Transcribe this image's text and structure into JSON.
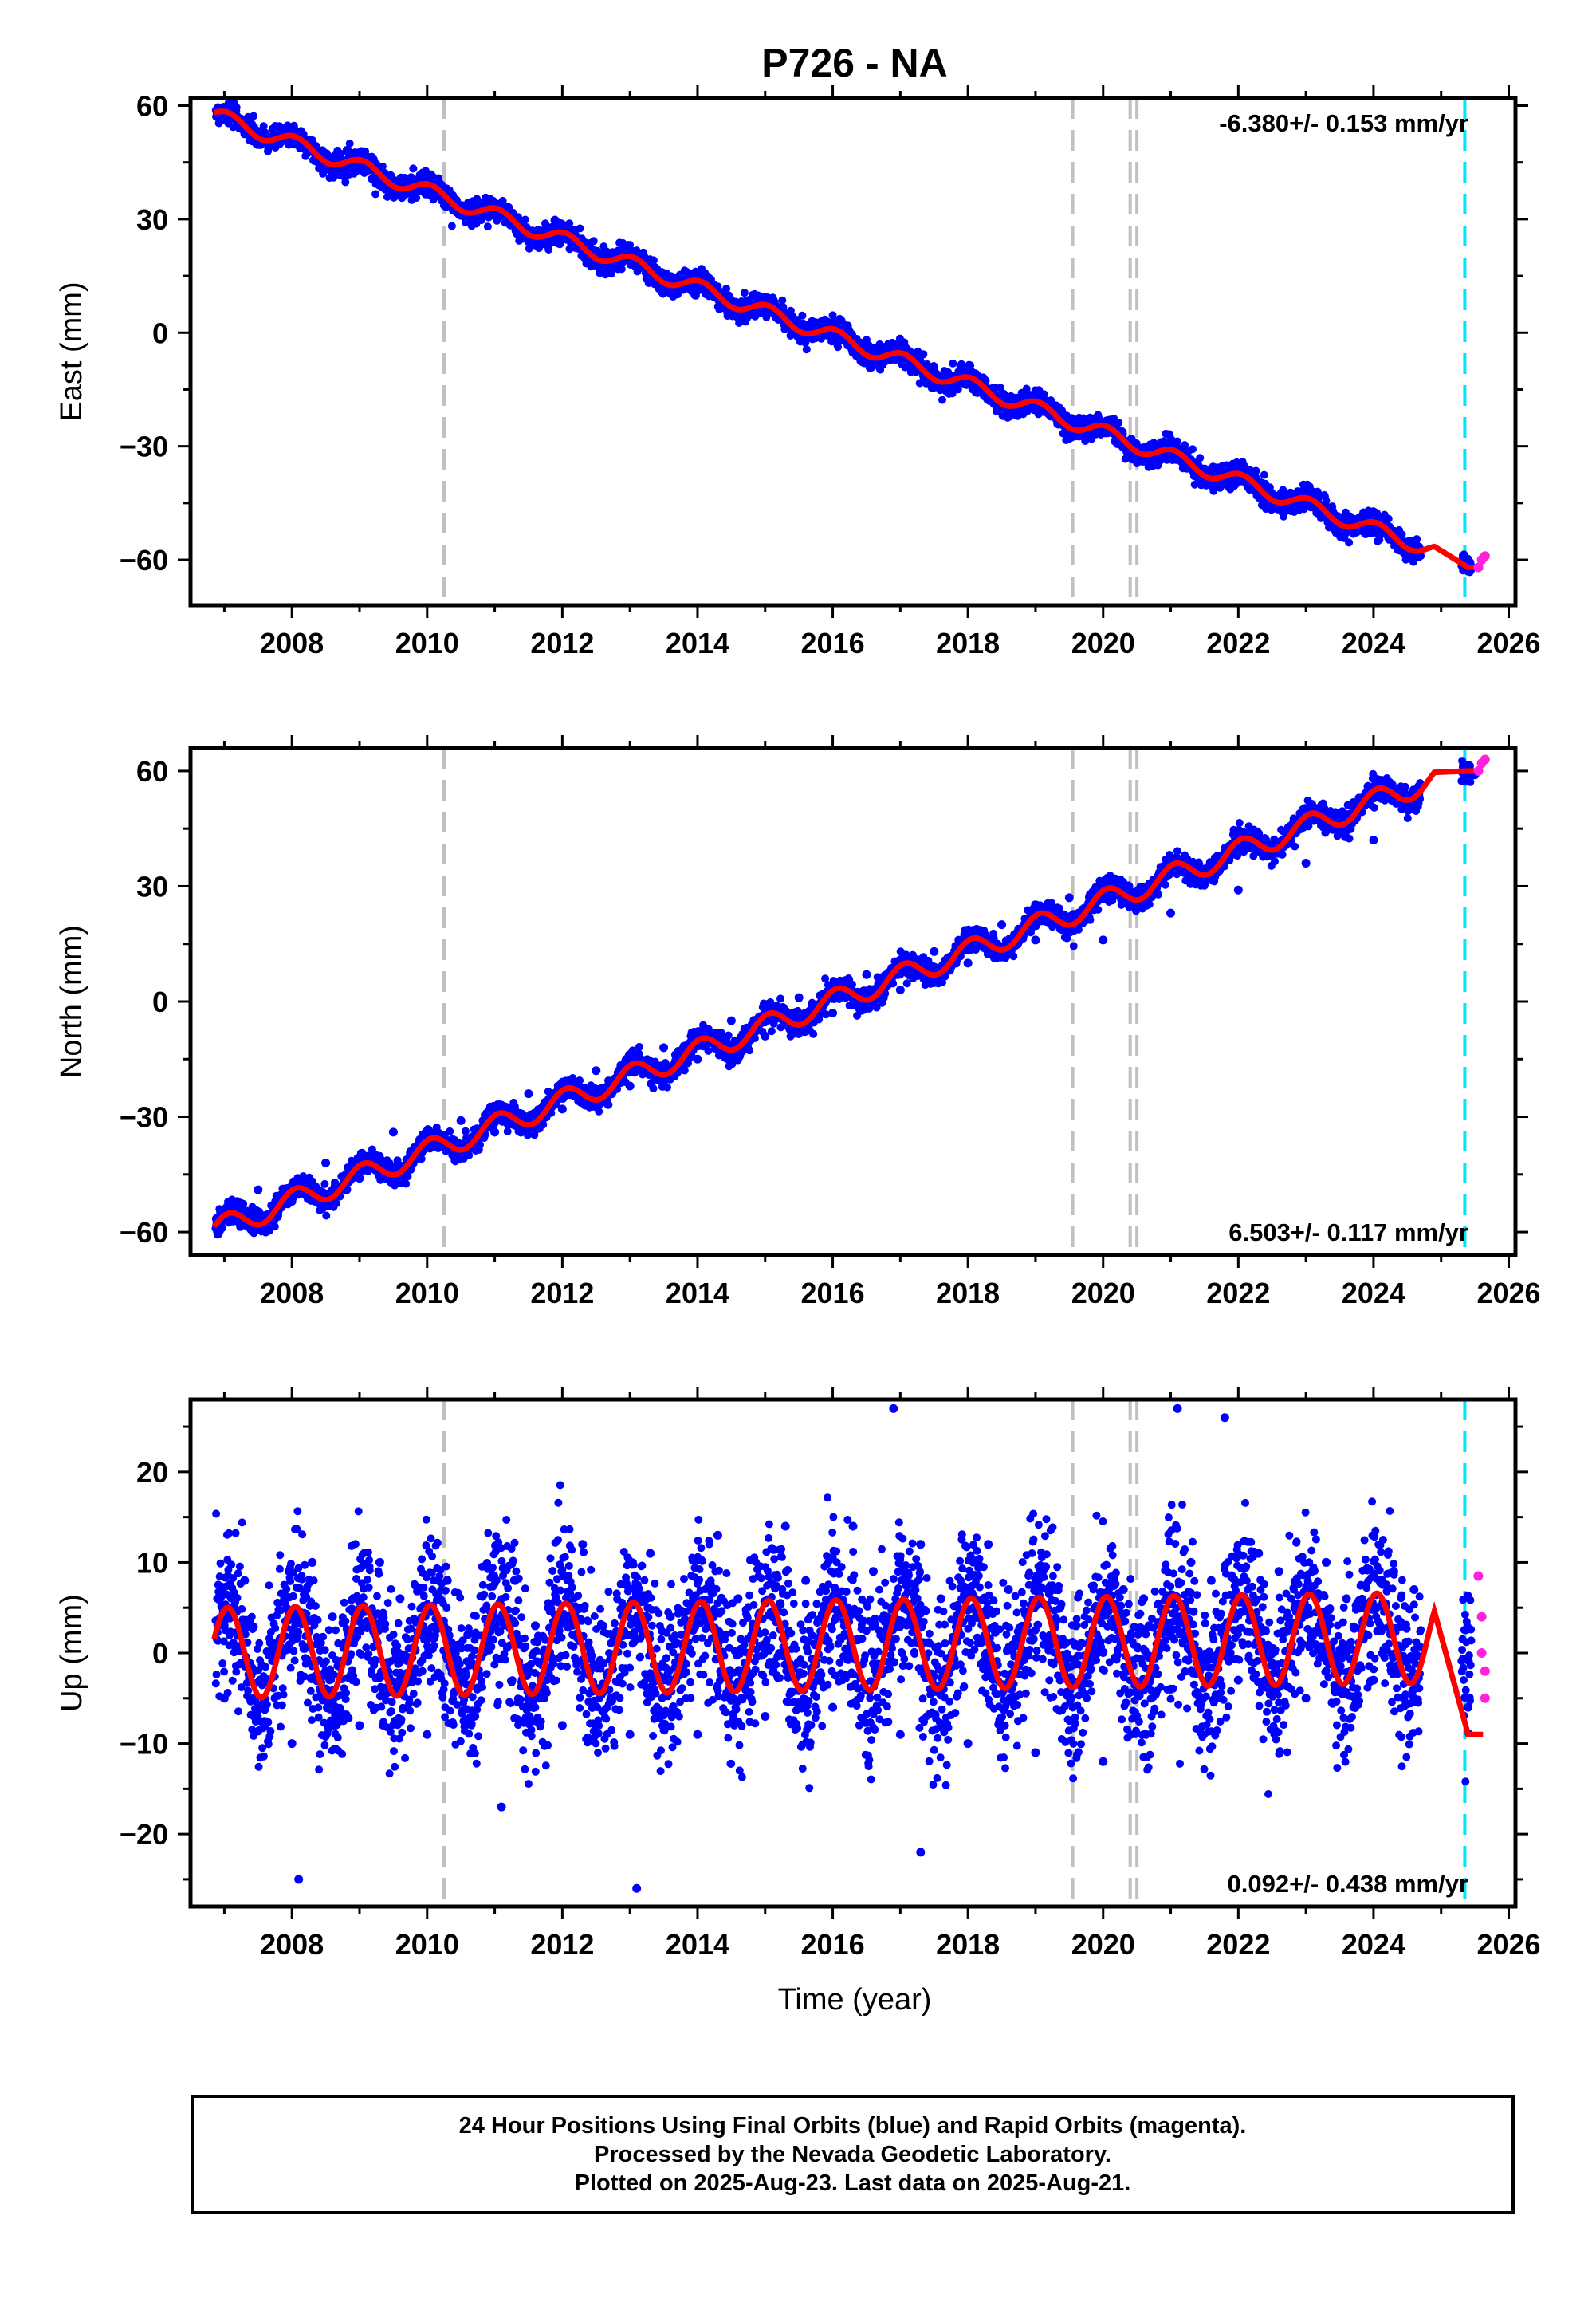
{
  "title": "P726 - NA",
  "chart_data": [
    {
      "type": "scatter",
      "panel": "east",
      "ylabel": "East (mm)",
      "xlabel": "",
      "xlim": [
        2006.5,
        2026.1
      ],
      "ylim": [
        -72,
        62
      ],
      "xticks": [
        2008,
        2010,
        2012,
        2014,
        2016,
        2018,
        2020,
        2022,
        2024,
        2026
      ],
      "yticks": [
        -60,
        -30,
        0,
        30,
        60
      ],
      "rate_label": "-6.380+/- 0.153 mm/yr",
      "rate_position": "top-right",
      "trend": {
        "start_year": 2006.85,
        "start_value": 57.5,
        "rate": -6.38,
        "seasonal_amplitude": 2.0,
        "end_dip": -62
      },
      "final_orbits_x": [
        2006.9,
        2007.5,
        2008.0,
        2008.5,
        2009.0,
        2009.5,
        2010.0,
        2010.5,
        2011.0,
        2011.5,
        2012.0,
        2012.5,
        2013.0,
        2013.5,
        2014.0,
        2014.5,
        2015.0,
        2015.5,
        2016.0,
        2016.5,
        2017.0,
        2017.5,
        2018.0,
        2018.5,
        2019.0,
        2019.5,
        2020.0,
        2020.5,
        2021.0,
        2021.5,
        2022.0,
        2022.5,
        2023.0,
        2023.5,
        2024.0,
        2024.5,
        2025.4
      ],
      "final_orbits_y": [
        57,
        50,
        51,
        46,
        44,
        38,
        37,
        31,
        33,
        26,
        26,
        20,
        20,
        14,
        13,
        7,
        7,
        1,
        1,
        -5,
        -6,
        -11,
        -13,
        -18,
        -19,
        -24,
        -26,
        -31,
        -31,
        -36,
        -38,
        -43,
        -44,
        -50,
        -50,
        -56,
        -63
      ],
      "rapid_orbits_x": [
        2025.55,
        2025.6,
        2025.65
      ],
      "rapid_orbits_y": [
        -62,
        -60,
        -59
      ],
      "vertical_lines_gray": [
        2010.25,
        2019.55,
        2020.4,
        2020.5
      ],
      "vertical_line_cyan": 2025.35
    },
    {
      "type": "scatter",
      "panel": "north",
      "ylabel": "North (mm)",
      "xlabel": "",
      "xlim": [
        2006.5,
        2026.1
      ],
      "ylim": [
        -66,
        66
      ],
      "xticks": [
        2008,
        2010,
        2012,
        2014,
        2016,
        2018,
        2020,
        2022,
        2024,
        2026
      ],
      "yticks": [
        -60,
        -30,
        0,
        30,
        60
      ],
      "rate_label": "6.503+/- 0.117 mm/yr",
      "rate_position": "bottom-right",
      "trend": {
        "start_year": 2006.85,
        "start_value": -59.5,
        "rate": 6.503,
        "seasonal_amplitude": 3.0,
        "end_dip": 60
      },
      "final_orbits_x": [
        2006.9,
        2007.5,
        2008.0,
        2008.5,
        2009.0,
        2009.5,
        2010.0,
        2010.5,
        2011.0,
        2011.5,
        2012.0,
        2012.5,
        2013.0,
        2013.5,
        2014.0,
        2014.5,
        2015.0,
        2015.5,
        2016.0,
        2016.5,
        2017.0,
        2017.5,
        2018.0,
        2018.5,
        2019.0,
        2019.5,
        2020.0,
        2020.5,
        2021.0,
        2021.5,
        2022.0,
        2022.5,
        2023.0,
        2023.5,
        2024.0,
        2024.5,
        2025.5
      ],
      "final_orbits_y": [
        -60,
        -49,
        -52,
        -42,
        -46,
        -34,
        -38,
        -31,
        -34,
        -24,
        -28,
        -18,
        -22,
        -12,
        -15,
        -5,
        -9,
        1,
        -3,
        7,
        3,
        13,
        10,
        20,
        16,
        27,
        16,
        26,
        23,
        32,
        29,
        39,
        36,
        45,
        42,
        51,
        59
      ],
      "rapid_orbits_x": [
        2025.55,
        2025.6,
        2025.65
      ],
      "rapid_orbits_y": [
        60,
        62,
        63
      ],
      "vertical_lines_gray": [
        2010.25,
        2019.55,
        2020.4,
        2020.5
      ],
      "vertical_line_cyan": 2025.35
    },
    {
      "type": "scatter",
      "panel": "up",
      "ylabel": "Up (mm)",
      "xlabel": "Time (year)",
      "xlim": [
        2006.5,
        2026.1
      ],
      "ylim": [
        -28,
        28
      ],
      "xticks": [
        2008,
        2010,
        2012,
        2014,
        2016,
        2018,
        2020,
        2022,
        2024,
        2026
      ],
      "yticks": [
        -20,
        -10,
        0,
        10,
        20
      ],
      "rate_label": "0.092+/- 0.438 mm/yr",
      "rate_position": "bottom-right",
      "trend": {
        "start_year": 2006.85,
        "start_value": 0,
        "rate": 0.092,
        "seasonal_amplitude": 5.0,
        "end_dip": -9
      },
      "final_orbits_x": [
        2007.0,
        2007.3,
        2007.6,
        2008.0,
        2008.3,
        2008.6,
        2009.0,
        2009.3,
        2009.6,
        2010.0,
        2010.3,
        2010.6,
        2011.1,
        2011.3,
        2011.6,
        2012.0,
        2012.3,
        2012.6,
        2013.0,
        2013.3,
        2013.6,
        2014.0,
        2014.3,
        2014.6,
        2015.0,
        2015.3,
        2015.6,
        2016.0,
        2016.3,
        2016.6,
        2017.0,
        2017.3,
        2017.6,
        2018.0,
        2018.3,
        2018.6,
        2019.0,
        2019.3,
        2019.6,
        2020.0,
        2020.3,
        2020.6,
        2021.0,
        2021.3,
        2021.6,
        2022.0,
        2022.3,
        2022.6,
        2023.0,
        2023.3,
        2023.6,
        2024.0,
        2024.3,
        2024.6,
        2025.4,
        2008.1,
        2013.1,
        2016.9,
        2021.1,
        2021.8,
        2017.3
      ],
      "final_orbits_y": [
        -5,
        8,
        -8,
        -10,
        10,
        4,
        -8,
        10,
        6,
        -9,
        8,
        2,
        -17,
        8,
        3,
        -8,
        12,
        3,
        -9,
        11,
        4,
        -9,
        13,
        6,
        -7,
        14,
        8,
        -6,
        14,
        9,
        -9,
        12,
        6,
        -10,
        12,
        7,
        -11,
        7,
        3,
        -12,
        7,
        6,
        -4,
        10,
        8,
        -3,
        11,
        9,
        -5,
        10,
        6,
        -3,
        9,
        7,
        -6,
        -25,
        -26,
        27,
        27,
        26,
        -22
      ],
      "rapid_orbits_x": [
        2025.55,
        2025.6,
        2025.6,
        2025.65,
        2025.65
      ],
      "rapid_orbits_y": [
        8.5,
        4,
        0,
        -2,
        -5
      ],
      "vertical_lines_gray": [
        2010.25,
        2019.55,
        2020.4,
        2020.5
      ],
      "vertical_line_cyan": 2025.35
    }
  ],
  "caption": {
    "line1": "24 Hour Positions Using Final Orbits (blue) and Rapid Orbits (magenta).",
    "line2": "Processed by the Nevada Geodetic Laboratory.",
    "line3": "Plotted on 2025-Aug-23. Last data on 2025-Aug-21."
  },
  "colors": {
    "final_orbits": "#0000ff",
    "rapid_orbits": "#ff22dd",
    "model": "#ff0000",
    "event_line": "#c0c0c0",
    "cyan_line": "#00e5ff",
    "axis": "#000000"
  }
}
